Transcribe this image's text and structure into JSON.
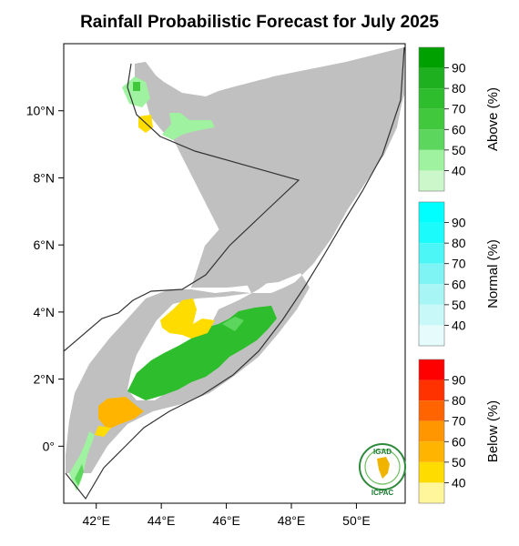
{
  "title": "Rainfall Probabilistic Forecast for July 2025",
  "map": {
    "lon_range": [
      41,
      51.5
    ],
    "lat_range": [
      -1.7,
      12
    ],
    "x_ticks": [
      "42°E",
      "44°E",
      "46°E",
      "48°E",
      "50°E"
    ],
    "x_tick_values": [
      42,
      44,
      46,
      48,
      50
    ],
    "y_ticks": [
      "10°N",
      "8°N",
      "6°N",
      "4°N",
      "2°N",
      "0°"
    ],
    "y_tick_values": [
      10,
      8,
      6,
      4,
      2,
      0
    ],
    "no_signal_color": "#c0c0c0"
  },
  "legends": [
    {
      "name": "above",
      "title": "Above (%)",
      "labels": [
        "90",
        "80",
        "70",
        "60",
        "50",
        "40"
      ],
      "colors": [
        "#00a000",
        "#1fb01f",
        "#2dbd2d",
        "#42c83c",
        "#5cd65c",
        "#9ff29f",
        "#cbf7cb"
      ]
    },
    {
      "name": "normal",
      "title": "Normal (%)",
      "labels": [
        "90",
        "80",
        "70",
        "60",
        "50",
        "40"
      ],
      "colors": [
        "#00ffff",
        "#1bfbfb",
        "#4cf6f6",
        "#7ef4f4",
        "#a7f5f5",
        "#c9f8f8",
        "#e6fbfb"
      ]
    },
    {
      "name": "below",
      "title": "Below (%)",
      "labels": [
        "90",
        "80",
        "70",
        "60",
        "50",
        "40"
      ],
      "colors": [
        "#ff0000",
        "#ff3200",
        "#ff6400",
        "#ff9600",
        "#ffb400",
        "#ffdc00",
        "#fff59a"
      ]
    }
  ],
  "logo": {
    "top_text": "IGAD",
    "bottom_text": "ICPAC"
  }
}
